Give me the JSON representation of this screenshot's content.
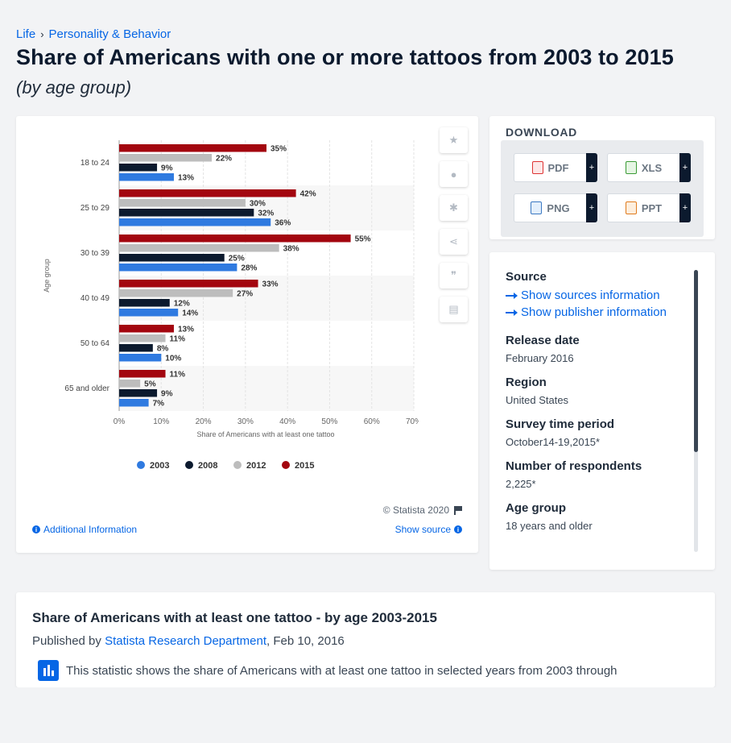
{
  "breadcrumb": {
    "items": [
      "Life",
      "Personality & Behavior"
    ]
  },
  "header": {
    "title": "Share of Americans with one or more tattoos from 2003 to 2015",
    "subtitle": "(by age group)"
  },
  "chart_footer": {
    "copyright": "© Statista 2020",
    "additional_info": "Additional Information",
    "show_source": "Show source"
  },
  "download": {
    "title": "DOWNLOAD",
    "buttons": [
      {
        "label": "PDF",
        "icon": "pdf-file-icon"
      },
      {
        "label": "XLS",
        "icon": "xls-file-icon"
      },
      {
        "label": "PNG",
        "icon": "png-file-icon"
      },
      {
        "label": "PPT",
        "icon": "ppt-file-icon"
      }
    ],
    "plus": "+"
  },
  "meta": {
    "source_label": "Source",
    "show_sources": "Show sources information",
    "show_publisher": "Show publisher information",
    "release_label": "Release date",
    "release_value": "February 2016",
    "region_label": "Region",
    "region_value": "United States",
    "survey_label": "Survey time period",
    "survey_value": "October14-19,2015*",
    "respondents_label": "Number of respondents",
    "respondents_value": "2,225*",
    "age_label": "Age group",
    "age_value": "18 years and older"
  },
  "description": {
    "title": "Share of Americans with at least one tattoo - by age 2003-2015",
    "published_by": "Published by",
    "publisher": "Statista Research Department",
    "date": ", Feb 10, 2016",
    "text": "This statistic shows the share of Americans with at least one tattoo in selected years from 2003 through"
  },
  "colors": {
    "2003": "#2f7ae0",
    "2008": "#0c1a2e",
    "2012": "#bdbdbd",
    "2015": "#a3060f",
    "accent": "#0666e5"
  },
  "chart_data": {
    "type": "bar",
    "orientation": "horizontal",
    "categories": [
      "18 to 24",
      "25 to 29",
      "30 to 39",
      "40 to 49",
      "50 to 64",
      "65 and older"
    ],
    "series": [
      {
        "name": "2015",
        "values": [
          35,
          42,
          55,
          33,
          13,
          11
        ]
      },
      {
        "name": "2012",
        "values": [
          22,
          30,
          38,
          27,
          11,
          5
        ]
      },
      {
        "name": "2008",
        "values": [
          9,
          32,
          25,
          12,
          8,
          9
        ]
      },
      {
        "name": "2003",
        "values": [
          13,
          36,
          28,
          14,
          10,
          7
        ]
      }
    ],
    "legend_order": [
      "2003",
      "2008",
      "2012",
      "2015"
    ],
    "xlabel": "Share of Americans with at least one tattoo",
    "ylabel": "Age group",
    "xlim": [
      0,
      70
    ],
    "xticks": [
      "0%",
      "10%",
      "20%",
      "30%",
      "40%",
      "50%",
      "60%",
      "70%"
    ],
    "value_suffix": "%",
    "legend_position": "bottom",
    "grid": true
  }
}
